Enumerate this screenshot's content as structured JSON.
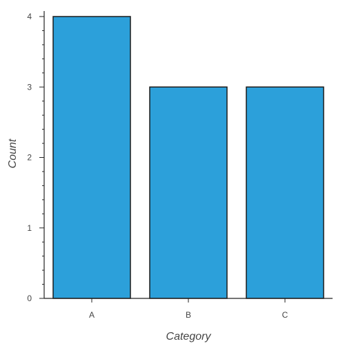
{
  "chart_data": {
    "type": "bar",
    "categories": [
      "A",
      "B",
      "C"
    ],
    "values": [
      4,
      3,
      3
    ],
    "xlabel": "Category",
    "ylabel": "Count",
    "ylim": [
      0,
      4
    ],
    "y_major_ticks": [
      0,
      1,
      2,
      3,
      4
    ],
    "y_minor_step": 0.2,
    "grid": false,
    "colors": {
      "bar_fill": "#2ca0da",
      "bar_stroke": "#1a1a1a",
      "axis": "#222222",
      "text": "#444444"
    }
  }
}
